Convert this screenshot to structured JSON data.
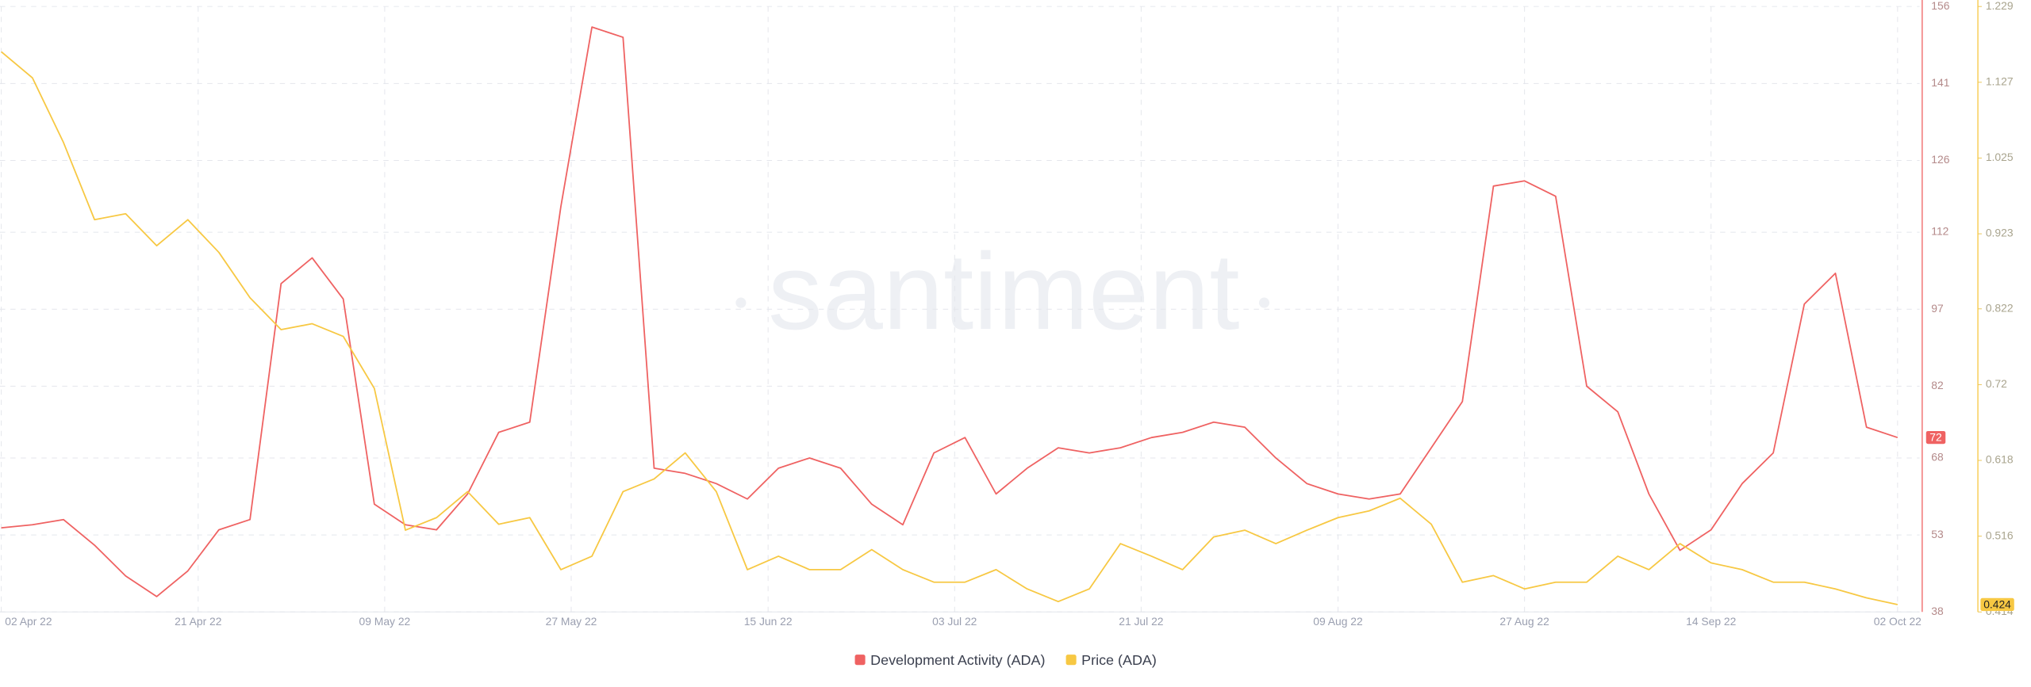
{
  "chart_data": {
    "type": "line",
    "watermark": "santiment",
    "x": [
      "2022-04-02",
      "2022-04-05",
      "2022-04-08",
      "2022-04-11",
      "2022-04-14",
      "2022-04-17",
      "2022-04-20",
      "2022-04-23",
      "2022-04-26",
      "2022-04-29",
      "2022-05-02",
      "2022-05-05",
      "2022-05-08",
      "2022-05-11",
      "2022-05-14",
      "2022-05-17",
      "2022-05-20",
      "2022-05-23",
      "2022-05-26",
      "2022-05-29",
      "2022-06-01",
      "2022-06-04",
      "2022-06-07",
      "2022-06-10",
      "2022-06-13",
      "2022-06-16",
      "2022-06-19",
      "2022-06-22",
      "2022-06-25",
      "2022-06-28",
      "2022-07-01",
      "2022-07-04",
      "2022-07-07",
      "2022-07-10",
      "2022-07-13",
      "2022-07-16",
      "2022-07-19",
      "2022-07-22",
      "2022-07-25",
      "2022-07-28",
      "2022-07-31",
      "2022-08-03",
      "2022-08-06",
      "2022-08-09",
      "2022-08-12",
      "2022-08-15",
      "2022-08-18",
      "2022-08-21",
      "2022-08-24",
      "2022-08-27",
      "2022-08-30",
      "2022-09-02",
      "2022-09-05",
      "2022-09-08",
      "2022-09-11",
      "2022-09-14",
      "2022-09-17",
      "2022-09-20",
      "2022-09-23",
      "2022-09-26",
      "2022-09-29",
      "2022-10-02"
    ],
    "series": [
      {
        "name": "Development Activity (ADA)",
        "color": "#ef6262",
        "axis": "y",
        "values": [
          54.4,
          55,
          56,
          51,
          45,
          41,
          46,
          54,
          56,
          102,
          107,
          99,
          59,
          55,
          54,
          61,
          73,
          75,
          117,
          152,
          150,
          66,
          65,
          63,
          60,
          66,
          68,
          66,
          59,
          55,
          69,
          72,
          61,
          66,
          70,
          69,
          70,
          72,
          73,
          75,
          74,
          68,
          63,
          61,
          60,
          61,
          70,
          79,
          121,
          122,
          119,
          82,
          77,
          61,
          50,
          54,
          63,
          69,
          98,
          104,
          74,
          72
        ]
      },
      {
        "name": "Price (ADA)",
        "color": "#f7c843",
        "axis": "y2",
        "values": [
          1.168,
          1.133,
          1.046,
          0.942,
          0.95,
          0.907,
          0.942,
          0.898,
          0.837,
          0.794,
          0.802,
          0.785,
          0.715,
          0.524,
          0.541,
          0.576,
          0.532,
          0.541,
          0.471,
          0.489,
          0.576,
          0.593,
          0.628,
          0.576,
          0.471,
          0.489,
          0.471,
          0.471,
          0.498,
          0.471,
          0.454,
          0.454,
          0.471,
          0.445,
          0.428,
          0.445,
          0.506,
          0.489,
          0.471,
          0.515,
          0.524,
          0.506,
          0.524,
          0.541,
          0.55,
          0.567,
          0.532,
          0.454,
          0.463,
          0.445,
          0.454,
          0.454,
          0.489,
          0.471,
          0.506,
          0.48,
          0.471,
          0.454,
          0.454,
          0.445,
          0.433,
          0.424
        ]
      }
    ],
    "xticks": [
      {
        "value": "2022-04-02",
        "label": "02 Apr 22"
      },
      {
        "value": "2022-04-21",
        "label": "21 Apr 22"
      },
      {
        "value": "2022-05-09",
        "label": "09 May 22"
      },
      {
        "value": "2022-05-27",
        "label": "27 May 22"
      },
      {
        "value": "2022-06-15",
        "label": "15 Jun 22"
      },
      {
        "value": "2022-07-03",
        "label": "03 Jul 22"
      },
      {
        "value": "2022-07-21",
        "label": "21 Jul 22"
      },
      {
        "value": "2022-08-09",
        "label": "09 Aug 22"
      },
      {
        "value": "2022-08-27",
        "label": "27 Aug 22"
      },
      {
        "value": "2022-09-14",
        "label": "14 Sep 22"
      },
      {
        "value": "2022-10-02",
        "label": "02 Oct 22"
      }
    ],
    "ylim": [
      38,
      156
    ],
    "yticks": [
      38,
      53,
      68,
      82,
      97,
      112,
      126,
      141,
      156
    ],
    "y2lim": [
      0.414,
      1.229
    ],
    "y2ticks": [
      0.414,
      0.516,
      0.618,
      0.72,
      0.822,
      0.923,
      1.025,
      1.127,
      1.229
    ],
    "grid": true
  }
}
